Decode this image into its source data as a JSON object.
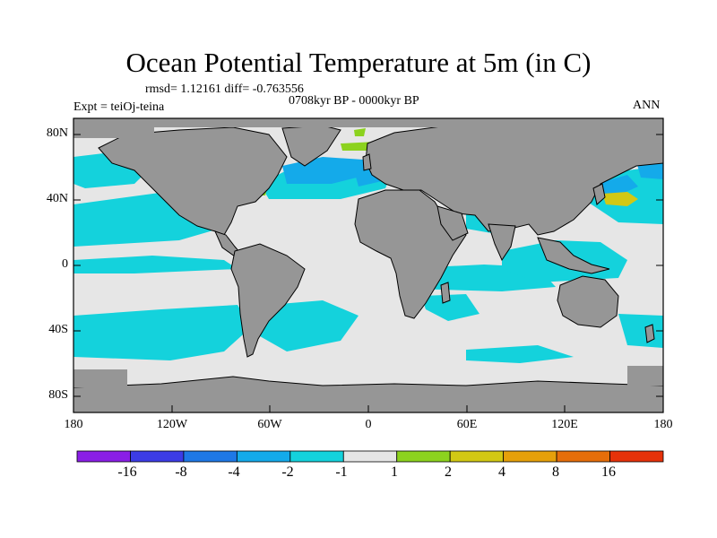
{
  "title": "Ocean Potential Temperature at 5m (in C)",
  "stats": "rmsd= 1.12161 diff= -0.763556",
  "period": "0708kyr BP - 0000kyr BP",
  "experiment": "Expt = teiOj-teina",
  "season": "ANN",
  "lat_labels": [
    "80N",
    "40N",
    "0",
    "40S",
    "80S"
  ],
  "lon_labels": [
    "180",
    "120W",
    "60W",
    "0",
    "60E",
    "120E",
    "180"
  ],
  "colorbar": {
    "labels": [
      "-16",
      "-8",
      "-4",
      "-2",
      "-1",
      "1",
      "2",
      "4",
      "8",
      "16"
    ],
    "colors": [
      "#8a1ee6",
      "#3c3ce6",
      "#1e78e6",
      "#14aaea",
      "#14d2dc",
      "#e6e6e6",
      "#8cd21e",
      "#d2c814",
      "#e6a00a",
      "#e66e0a",
      "#e6320a"
    ]
  },
  "map_colors": {
    "land": "#969696",
    "ocean_neutral": "#e6e6e6",
    "cool_1": "#14d2dc",
    "cool_2": "#14aaea",
    "warm_1": "#8cd21e",
    "warm_2": "#d2c814"
  }
}
